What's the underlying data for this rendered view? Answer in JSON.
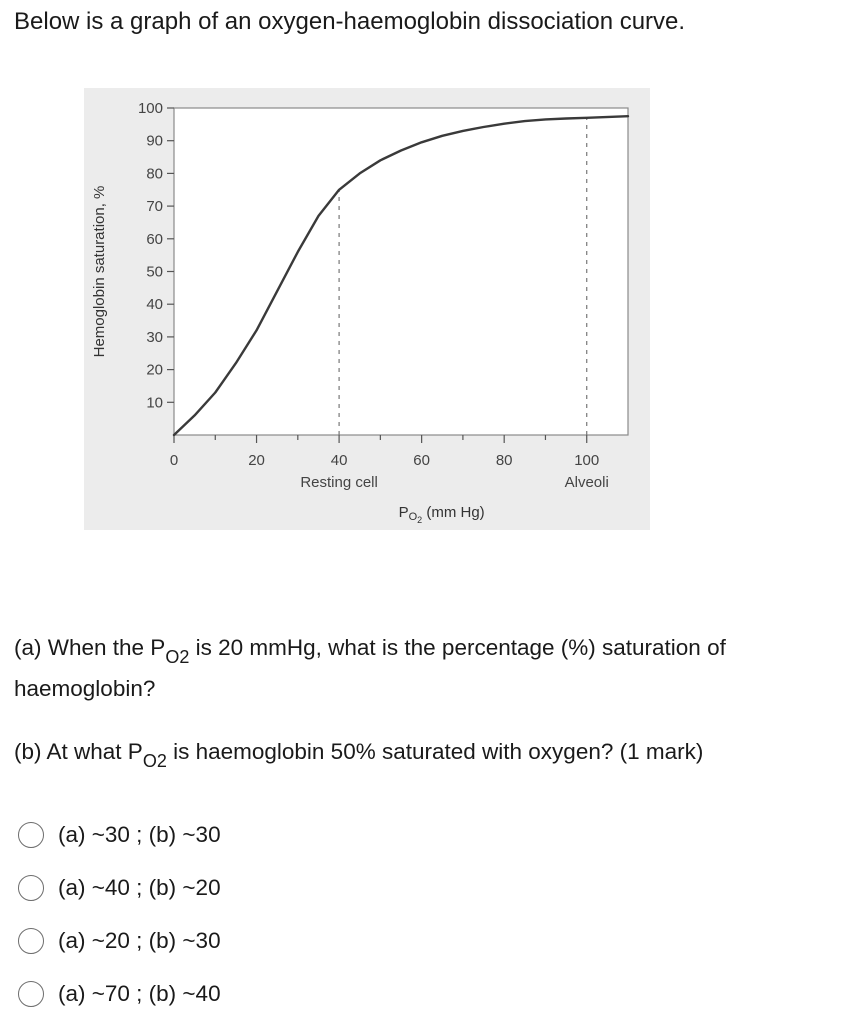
{
  "intro_text": "Below is a graph of an oxygen-haemoglobin dissociation curve.",
  "chart_data": {
    "type": "line",
    "ylabel": "Hemoglobin saturation, %",
    "xlabel_main": "P",
    "xlabel_sub": "O",
    "xlabel_sub2": "2",
    "xlabel_unit": "(mm Hg)",
    "xlim": [
      0,
      110
    ],
    "ylim": [
      0,
      100
    ],
    "x_ticks": [
      0,
      20,
      40,
      60,
      80,
      100
    ],
    "y_ticks": [
      10,
      20,
      30,
      40,
      50,
      60,
      70,
      80,
      90,
      100
    ],
    "x_tick_labels": [
      "0",
      "20",
      "40",
      "60",
      "80",
      "100"
    ],
    "y_tick_labels": [
      "10",
      "20",
      "30",
      "40",
      "50",
      "60",
      "70",
      "80",
      "90",
      "100"
    ],
    "annotations": [
      {
        "x": 40,
        "text": "Resting cell"
      },
      {
        "x": 100,
        "text": "Alveoli"
      }
    ],
    "reference_lines": [
      {
        "x": 40,
        "y_to": 75,
        "style": "dashed"
      },
      {
        "x": 100,
        "y_to": 97,
        "style": "dashed"
      }
    ],
    "series": [
      {
        "x": [
          0,
          5,
          10,
          15,
          20,
          25,
          30,
          35,
          40,
          45,
          50,
          55,
          60,
          65,
          70,
          75,
          80,
          85,
          90,
          95,
          100,
          110
        ],
        "y": [
          0,
          6,
          13,
          22,
          32,
          44,
          56,
          67,
          75,
          80,
          84,
          87,
          89.5,
          91.5,
          93,
          94.2,
          95.2,
          96,
          96.5,
          96.8,
          97,
          97.5
        ]
      }
    ],
    "grid": false,
    "background": "#ececec"
  },
  "question_a": {
    "prefix": "(a) When the P",
    "sub": "O2",
    "suffix": " is 20 mmHg, what is the percentage (%) saturation of haemoglobin?"
  },
  "question_b": {
    "prefix": "(b) At what P",
    "sub": "O2",
    "suffix": " is haemoglobin 50% saturated with oxygen? (1 mark)"
  },
  "options": [
    {
      "label": "(a) ~30 ; (b) ~30"
    },
    {
      "label": "(a) ~40 ; (b) ~20"
    },
    {
      "label": "(a) ~20 ; (b) ~30"
    },
    {
      "label": "(a) ~70 ; (b) ~40"
    }
  ]
}
